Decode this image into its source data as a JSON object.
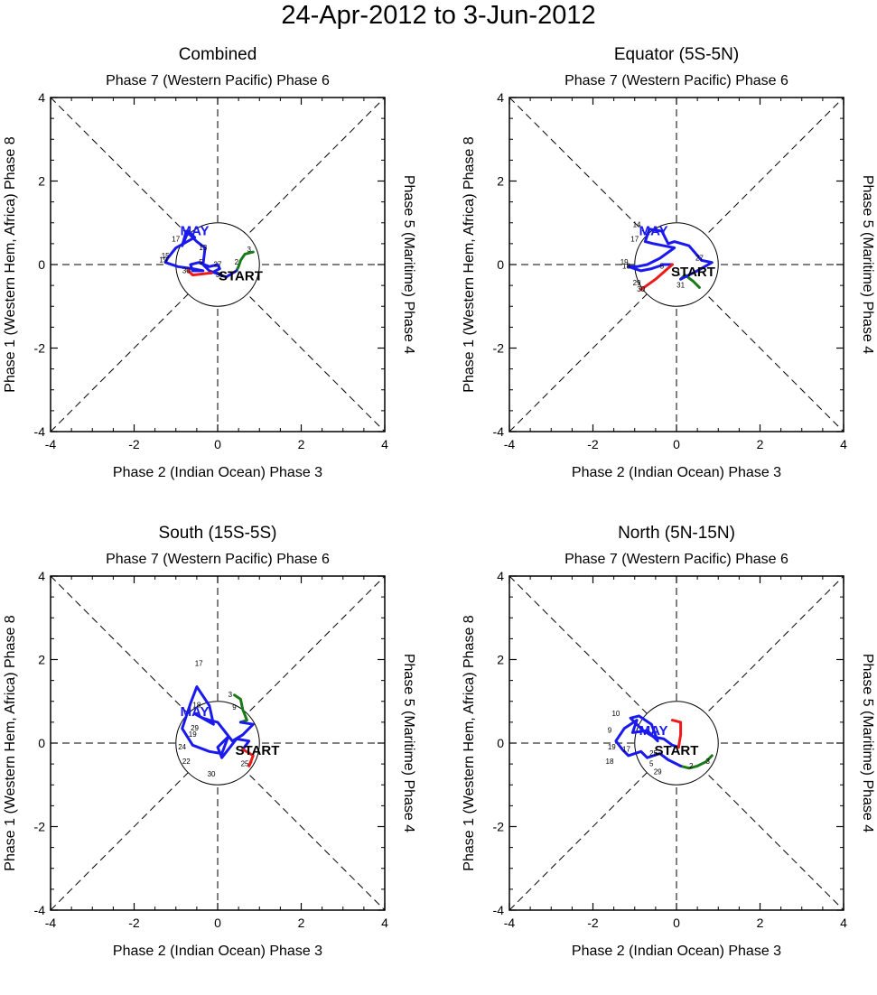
{
  "page_title": "24-Apr-2012 to 3-Jun-2012",
  "labels": {
    "top_axis": "Phase 7 (Western Pacific) Phase 6",
    "bottom_axis": "Phase 2 (Indian Ocean) Phase 3",
    "left_axis": "Phase 1 (Western Hem, Africa) Phase 8",
    "right_axis": "Phase 5 (Maritime) Phase 4",
    "start_label": "START",
    "month_label": "MAY"
  },
  "colors": {
    "april": "#1a7a1a",
    "may": "#1a1aee",
    "june": "#ee1a1a",
    "axes": "#000000"
  },
  "chart_data": [
    {
      "type": "line",
      "title": "Combined",
      "xlim": [
        -4,
        4
      ],
      "ylim": [
        -4,
        4
      ],
      "xticks": [
        -4,
        -2,
        0,
        2,
        4
      ],
      "yticks": [
        -4,
        -2,
        0,
        2,
        4
      ],
      "start_point": [
        0.55,
        -0.25
      ],
      "month_label_position": [
        -0.55,
        0.7
      ],
      "segments": [
        {
          "name": "April",
          "color": "#1a7a1a",
          "x": [
            0.85,
            0.65,
            0.55,
            0.5,
            0.45
          ],
          "y": [
            0.3,
            0.25,
            0.1,
            -0.05,
            -0.15
          ]
        },
        {
          "name": "May",
          "color": "#1a1aee",
          "x": [
            0.45,
            0.2,
            -0.2,
            -0.35,
            -0.3,
            -0.5,
            -0.75,
            -0.85,
            -0.7,
            -0.55,
            -1.0,
            -1.2,
            -1.25,
            -0.95,
            -0.6,
            -0.35,
            -0.6,
            -0.65,
            -0.45,
            -0.2,
            0.0,
            0.05,
            -0.15
          ],
          "y": [
            -0.15,
            -0.3,
            -0.15,
            0.0,
            0.4,
            0.55,
            0.8,
            0.45,
            0.8,
            0.65,
            0.4,
            0.15,
            0.05,
            -0.05,
            -0.1,
            -0.15,
            -0.15,
            0.0,
            0.05,
            -0.05,
            0.0,
            -0.1,
            -0.2
          ]
        },
        {
          "name": "June",
          "color": "#ee1a1a",
          "x": [
            -0.15,
            -0.6,
            -0.7
          ],
          "y": [
            -0.2,
            -0.25,
            -0.15
          ]
        }
      ],
      "day_labels": [
        {
          "text": "2",
          "x": 0.45,
          "y": 0.0
        },
        {
          "text": "3",
          "x": 0.75,
          "y": 0.3
        },
        {
          "text": "17",
          "x": -1.0,
          "y": 0.55
        },
        {
          "text": "13",
          "x": -0.35,
          "y": 0.35
        },
        {
          "text": "15",
          "x": -1.25,
          "y": 0.15
        },
        {
          "text": "19",
          "x": -1.3,
          "y": 0.05
        },
        {
          "text": "5",
          "x": -0.4,
          "y": 0.0
        },
        {
          "text": "27",
          "x": 0.0,
          "y": -0.05
        },
        {
          "text": "30",
          "x": -0.75,
          "y": -0.2
        },
        {
          "text": "31",
          "x": 0.05,
          "y": -0.3
        }
      ]
    },
    {
      "type": "line",
      "title": "Equator (5S-5N)",
      "xlim": [
        -4,
        4
      ],
      "ylim": [
        -4,
        4
      ],
      "xticks": [
        -4,
        -2,
        0,
        2,
        4
      ],
      "yticks": [
        -4,
        -2,
        0,
        2,
        4
      ],
      "start_point": [
        0.4,
        -0.15
      ],
      "month_label_position": [
        -0.55,
        0.7
      ],
      "segments": [
        {
          "name": "April",
          "color": "#1a7a1a",
          "x": [
            0.55,
            0.4,
            0.2,
            0.1
          ],
          "y": [
            -0.55,
            -0.4,
            -0.25,
            -0.35
          ]
        },
        {
          "name": "May",
          "color": "#1a1aee",
          "x": [
            0.1,
            0.5,
            0.85,
            0.6,
            0.3,
            -0.05,
            -0.2,
            -0.35,
            -0.65,
            -0.75,
            -0.55,
            -0.3,
            -0.05,
            -0.4,
            -0.7,
            -0.95,
            -1.15,
            -0.85,
            -0.6,
            -0.3,
            -0.1
          ],
          "y": [
            -0.35,
            -0.15,
            0.05,
            0.1,
            0.45,
            0.55,
            0.5,
            0.8,
            0.85,
            0.55,
            0.5,
            0.45,
            0.4,
            0.15,
            0.0,
            -0.05,
            -0.05,
            -0.15,
            -0.1,
            0.0,
            0.0
          ]
        },
        {
          "name": "June",
          "color": "#ee1a1a",
          "x": [
            -0.1,
            -0.5,
            -0.85
          ],
          "y": [
            0.0,
            -0.35,
            -0.6
          ]
        }
      ],
      "day_labels": [
        {
          "text": "14",
          "x": -0.95,
          "y": 0.9
        },
        {
          "text": "17",
          "x": -1.0,
          "y": 0.55
        },
        {
          "text": "19",
          "x": -1.25,
          "y": 0.0
        },
        {
          "text": "18",
          "x": -1.2,
          "y": -0.1
        },
        {
          "text": "5",
          "x": -0.35,
          "y": -0.1
        },
        {
          "text": "27",
          "x": 0.55,
          "y": 0.1
        },
        {
          "text": "29",
          "x": -0.95,
          "y": -0.5
        },
        {
          "text": "30",
          "x": -0.85,
          "y": -0.65
        },
        {
          "text": "31",
          "x": 0.1,
          "y": -0.55
        },
        {
          "text": "1",
          "x": 0.05,
          "y": -0.25
        }
      ]
    },
    {
      "type": "line",
      "title": "South (15S-5S)",
      "xlim": [
        -4,
        4
      ],
      "ylim": [
        -4,
        4
      ],
      "xticks": [
        -4,
        -2,
        0,
        2,
        4
      ],
      "yticks": [
        -4,
        -2,
        0,
        2,
        4
      ],
      "start_point": [
        0.95,
        -0.15
      ],
      "month_label_position": [
        -0.55,
        0.65
      ],
      "segments": [
        {
          "name": "April",
          "color": "#1a7a1a",
          "x": [
            0.4,
            0.55,
            0.6,
            0.7,
            0.55
          ],
          "y": [
            1.15,
            1.05,
            0.8,
            0.55,
            0.5
          ]
        },
        {
          "name": "May",
          "color": "#1a1aee",
          "x": [
            0.55,
            0.85,
            0.6,
            0.35,
            0.0,
            -0.2,
            -0.35,
            -0.55,
            -0.1,
            -0.2,
            -0.5,
            -0.65,
            -0.85,
            -0.6,
            -0.2,
            0.1,
            0.25,
            0.0,
            0.1,
            0.45,
            0.75,
            0.6
          ],
          "y": [
            0.5,
            0.45,
            0.2,
            0.05,
            0.5,
            0.55,
            0.6,
            0.7,
            0.45,
            0.9,
            1.35,
            0.95,
            0.35,
            -0.05,
            -0.2,
            -0.25,
            0.15,
            -0.1,
            -0.35,
            0.1,
            0.05,
            -0.15
          ]
        },
        {
          "name": "June",
          "color": "#ee1a1a",
          "x": [
            0.6,
            0.85,
            0.75,
            0.8
          ],
          "y": [
            -0.15,
            -0.3,
            -0.55,
            -0.45
          ]
        }
      ],
      "day_labels": [
        {
          "text": "17",
          "x": -0.45,
          "y": 1.85
        },
        {
          "text": "3",
          "x": 0.3,
          "y": 1.1
        },
        {
          "text": "18",
          "x": -0.5,
          "y": 0.85
        },
        {
          "text": "29",
          "x": -0.55,
          "y": 0.3
        },
        {
          "text": "19",
          "x": -0.6,
          "y": 0.15
        },
        {
          "text": "9",
          "x": 0.4,
          "y": 0.8
        },
        {
          "text": "24",
          "x": -0.85,
          "y": -0.15
        },
        {
          "text": "22",
          "x": -0.75,
          "y": -0.5
        },
        {
          "text": "30",
          "x": -0.15,
          "y": -0.8
        },
        {
          "text": "25",
          "x": 0.65,
          "y": -0.55
        }
      ]
    },
    {
      "type": "line",
      "title": "North (5N-15N)",
      "xlim": [
        -4,
        4
      ],
      "ylim": [
        -4,
        4
      ],
      "xticks": [
        -4,
        -2,
        0,
        2,
        4
      ],
      "yticks": [
        -4,
        -2,
        0,
        2,
        4
      ],
      "start_point": [
        0.0,
        -0.15
      ],
      "month_label_position": [
        -0.55,
        0.2
      ],
      "segments": [
        {
          "name": "April",
          "color": "#1a7a1a",
          "x": [
            0.85,
            0.7,
            0.5,
            0.3,
            0.1
          ],
          "y": [
            -0.3,
            -0.45,
            -0.55,
            -0.6,
            -0.55
          ]
        },
        {
          "name": "May",
          "color": "#1a1aee",
          "x": [
            0.1,
            -0.2,
            -0.4,
            -0.7,
            -0.85,
            -1.15,
            -1.3,
            -1.45,
            -1.25,
            -0.95,
            -1.05,
            -0.7,
            -0.45,
            -0.6,
            -0.9,
            -1.1,
            -0.8,
            -0.55,
            -0.3,
            -0.1,
            0.05
          ],
          "y": [
            -0.55,
            -0.4,
            -0.25,
            -0.35,
            -0.2,
            -0.3,
            -0.15,
            0.05,
            0.35,
            0.55,
            0.25,
            0.3,
            0.05,
            0.45,
            0.65,
            0.6,
            0.3,
            0.15,
            0.1,
            -0.05,
            -0.1
          ]
        },
        {
          "name": "June",
          "color": "#ee1a1a",
          "x": [
            0.05,
            0.1,
            0.1,
            -0.1
          ],
          "y": [
            -0.1,
            0.2,
            0.5,
            0.55
          ]
        }
      ],
      "day_labels": [
        {
          "text": "10",
          "x": -1.45,
          "y": 0.65
        },
        {
          "text": "9",
          "x": -1.6,
          "y": 0.25
        },
        {
          "text": "19",
          "x": -1.55,
          "y": -0.15
        },
        {
          "text": "18",
          "x": -1.6,
          "y": -0.5
        },
        {
          "text": "17",
          "x": -1.2,
          "y": -0.2
        },
        {
          "text": "25",
          "x": -0.55,
          "y": -0.3
        },
        {
          "text": "5",
          "x": -0.6,
          "y": -0.55
        },
        {
          "text": "29",
          "x": -0.45,
          "y": -0.75
        },
        {
          "text": "2",
          "x": 0.35,
          "y": -0.6
        },
        {
          "text": "3",
          "x": 0.75,
          "y": -0.5
        }
      ]
    }
  ]
}
